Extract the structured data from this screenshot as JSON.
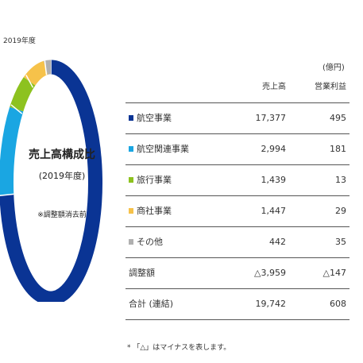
{
  "year_label": "2019年度",
  "center": {
    "title": "売上高構成比",
    "subtitle": "(2019年度)",
    "note": "※調整額消去前"
  },
  "colors": {
    "airline": "#0a3494",
    "airline_related": "#1aa6e2",
    "travel": "#8dc21f",
    "trading": "#f6c24a",
    "other": "#b0b0b0"
  },
  "unit": "(億円)",
  "headers": {
    "sales": "売上高",
    "operating_income": "営業利益"
  },
  "rows": [
    {
      "label": "航空事業",
      "sales": "17,377",
      "operating_income": "495",
      "color": "#0a3494"
    },
    {
      "label": "航空関連事業",
      "sales": "2,994",
      "operating_income": "181",
      "color": "#1aa6e2"
    },
    {
      "label": "旅行事業",
      "sales": "1,439",
      "operating_income": "13",
      "color": "#8dc21f"
    },
    {
      "label": "商社事業",
      "sales": "1,447",
      "operating_income": "29",
      "color": "#f6c24a"
    },
    {
      "label": "その他",
      "sales": "442",
      "operating_income": "35",
      "color": "#b0b0b0"
    },
    {
      "label": "調整額",
      "sales": "△3,959",
      "operating_income": "△147"
    },
    {
      "label": "合計 (連結)",
      "sales": "19,742",
      "operating_income": "608"
    }
  ],
  "footnote": "* 「△」はマイナスを表します。",
  "chart_data": {
    "type": "pie",
    "categories": [
      "航空事業",
      "航空関連事業",
      "旅行事業",
      "商社事業",
      "その他"
    ],
    "values": [
      17377,
      2994,
      1439,
      1447,
      442
    ],
    "colors": [
      "#0a3494",
      "#1aa6e2",
      "#8dc21f",
      "#f6c24a",
      "#b0b0b0"
    ],
    "title": "売上高構成比",
    "subtitle": "(2019年度)",
    "legend": "table-right"
  }
}
